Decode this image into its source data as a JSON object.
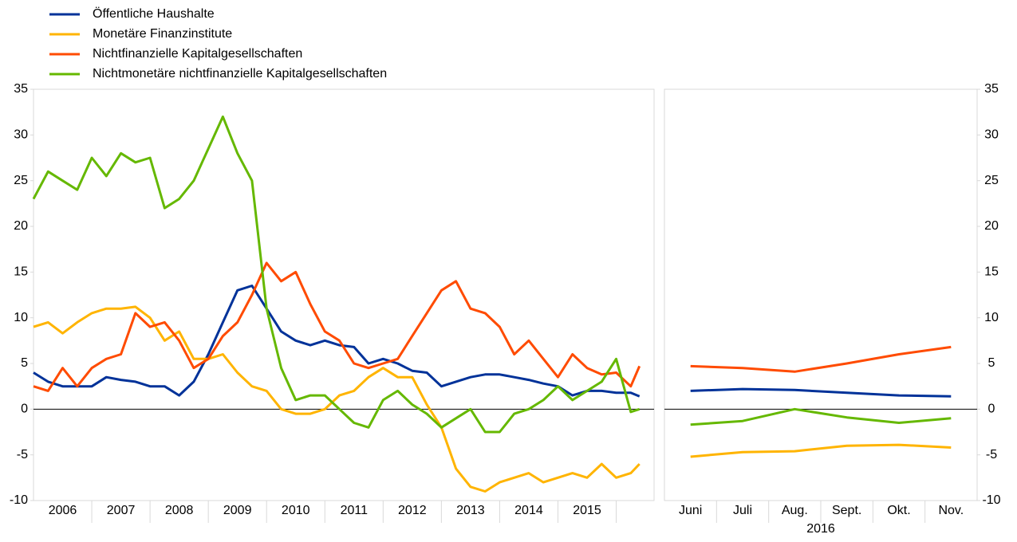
{
  "chart_data": [
    {
      "type": "line",
      "x": [
        2006,
        2006.25,
        2006.5,
        2006.75,
        2007,
        2007.25,
        2007.5,
        2007.75,
        2008,
        2008.25,
        2008.5,
        2008.75,
        2009,
        2009.25,
        2009.5,
        2009.75,
        2010,
        2010.25,
        2010.5,
        2010.75,
        2011,
        2011.25,
        2011.5,
        2011.75,
        2012,
        2012.25,
        2012.5,
        2012.75,
        2013,
        2013.25,
        2013.5,
        2013.75,
        2014,
        2014.25,
        2014.5,
        2014.75,
        2015,
        2015.25,
        2015.5,
        2015.75,
        2016,
        2016.25,
        2016.4
      ],
      "xlim": [
        2006,
        2016.65
      ],
      "categories": [
        "2006",
        "2007",
        "2008",
        "2009",
        "2010",
        "2011",
        "2012",
        "2013",
        "2014",
        "2015"
      ],
      "ylim": [
        -10,
        35
      ],
      "yticks": [
        -10,
        -5,
        0,
        5,
        10,
        15,
        20,
        25,
        30,
        35
      ],
      "series": [
        {
          "name": "Öffentliche Haushalte",
          "color": "#003299",
          "values": [
            4,
            3,
            2.5,
            2.5,
            2.5,
            3.5,
            3.2,
            3,
            2.5,
            2.5,
            1.5,
            3,
            6,
            9.5,
            13,
            13.5,
            11,
            8.5,
            7.5,
            7,
            7.5,
            7,
            6.8,
            5,
            5.5,
            5,
            4.2,
            4,
            2.5,
            3,
            3.5,
            3.8,
            3.8,
            3.5,
            3.2,
            2.8,
            2.5,
            1.5,
            2,
            2,
            1.8,
            1.8,
            1.4
          ]
        },
        {
          "name": "Monetäre Finanzinstitute",
          "color": "#ffb400",
          "values": [
            9,
            9.5,
            8.3,
            9.5,
            10.5,
            11,
            11,
            11.2,
            10,
            7.5,
            8.5,
            5.5,
            5.5,
            6,
            4,
            2.5,
            2,
            0,
            -0.5,
            -0.5,
            0,
            1.5,
            2,
            3.5,
            4.5,
            3.5,
            3.5,
            0.5,
            -2,
            -6.5,
            -8.5,
            -9,
            -8,
            -7.5,
            -7,
            -8,
            -7.5,
            -7,
            -7.5,
            -6,
            -7.5,
            -7,
            -6
          ]
        },
        {
          "name": "Nichtfinanzielle Kapitalgesellschaften",
          "color": "#ff4b00",
          "values": [
            2.5,
            2,
            4.5,
            2.5,
            4.5,
            5.5,
            6,
            10.5,
            9,
            9.5,
            7.5,
            4.5,
            5.5,
            8,
            9.5,
            12.5,
            16,
            14,
            15,
            11.5,
            8.5,
            7.5,
            5,
            4.5,
            5,
            5.5,
            8,
            10.5,
            13,
            14,
            11,
            10.5,
            9,
            6,
            7.5,
            5.5,
            3.5,
            6,
            4.5,
            3.8,
            4,
            2.5,
            4.7
          ]
        },
        {
          "name": "Nichtmonetäre nichtfinanzielle Kapitalgesellschaften",
          "color": "#65b800",
          "values": [
            23,
            26,
            25,
            24,
            27.5,
            25.5,
            28,
            27,
            27.5,
            22,
            23,
            25,
            28.5,
            32,
            28,
            25,
            11,
            4.5,
            1,
            1.5,
            1.5,
            0,
            -1.5,
            -2,
            1,
            2,
            0.5,
            -0.5,
            -2,
            -1,
            0,
            -2.5,
            -2.5,
            -0.5,
            0,
            1,
            2.5,
            1,
            2,
            3,
            5.5,
            -0.3,
            0
          ]
        }
      ]
    },
    {
      "type": "line",
      "categories": [
        "Juni",
        "Juli",
        "Aug.",
        "Sept.",
        "Okt.",
        "Nov."
      ],
      "xlabel": "2016",
      "ylim": [
        -10,
        35
      ],
      "yticks": [
        -10,
        -5,
        0,
        5,
        10,
        15,
        20,
        25,
        30,
        35
      ],
      "series": [
        {
          "color": "#003299",
          "values": [
            2.0,
            2.2,
            2.1,
            1.8,
            1.5,
            1.4
          ]
        },
        {
          "color": "#ffb400",
          "values": [
            -5.2,
            -4.7,
            -4.6,
            -4.0,
            -3.9,
            -4.2
          ]
        },
        {
          "color": "#ff4b00",
          "values": [
            4.7,
            4.5,
            4.1,
            5.0,
            6.0,
            6.8
          ]
        },
        {
          "color": "#65b800",
          "values": [
            -1.7,
            -1.3,
            0,
            -0.9,
            -1.5,
            -1.0
          ]
        }
      ]
    }
  ]
}
